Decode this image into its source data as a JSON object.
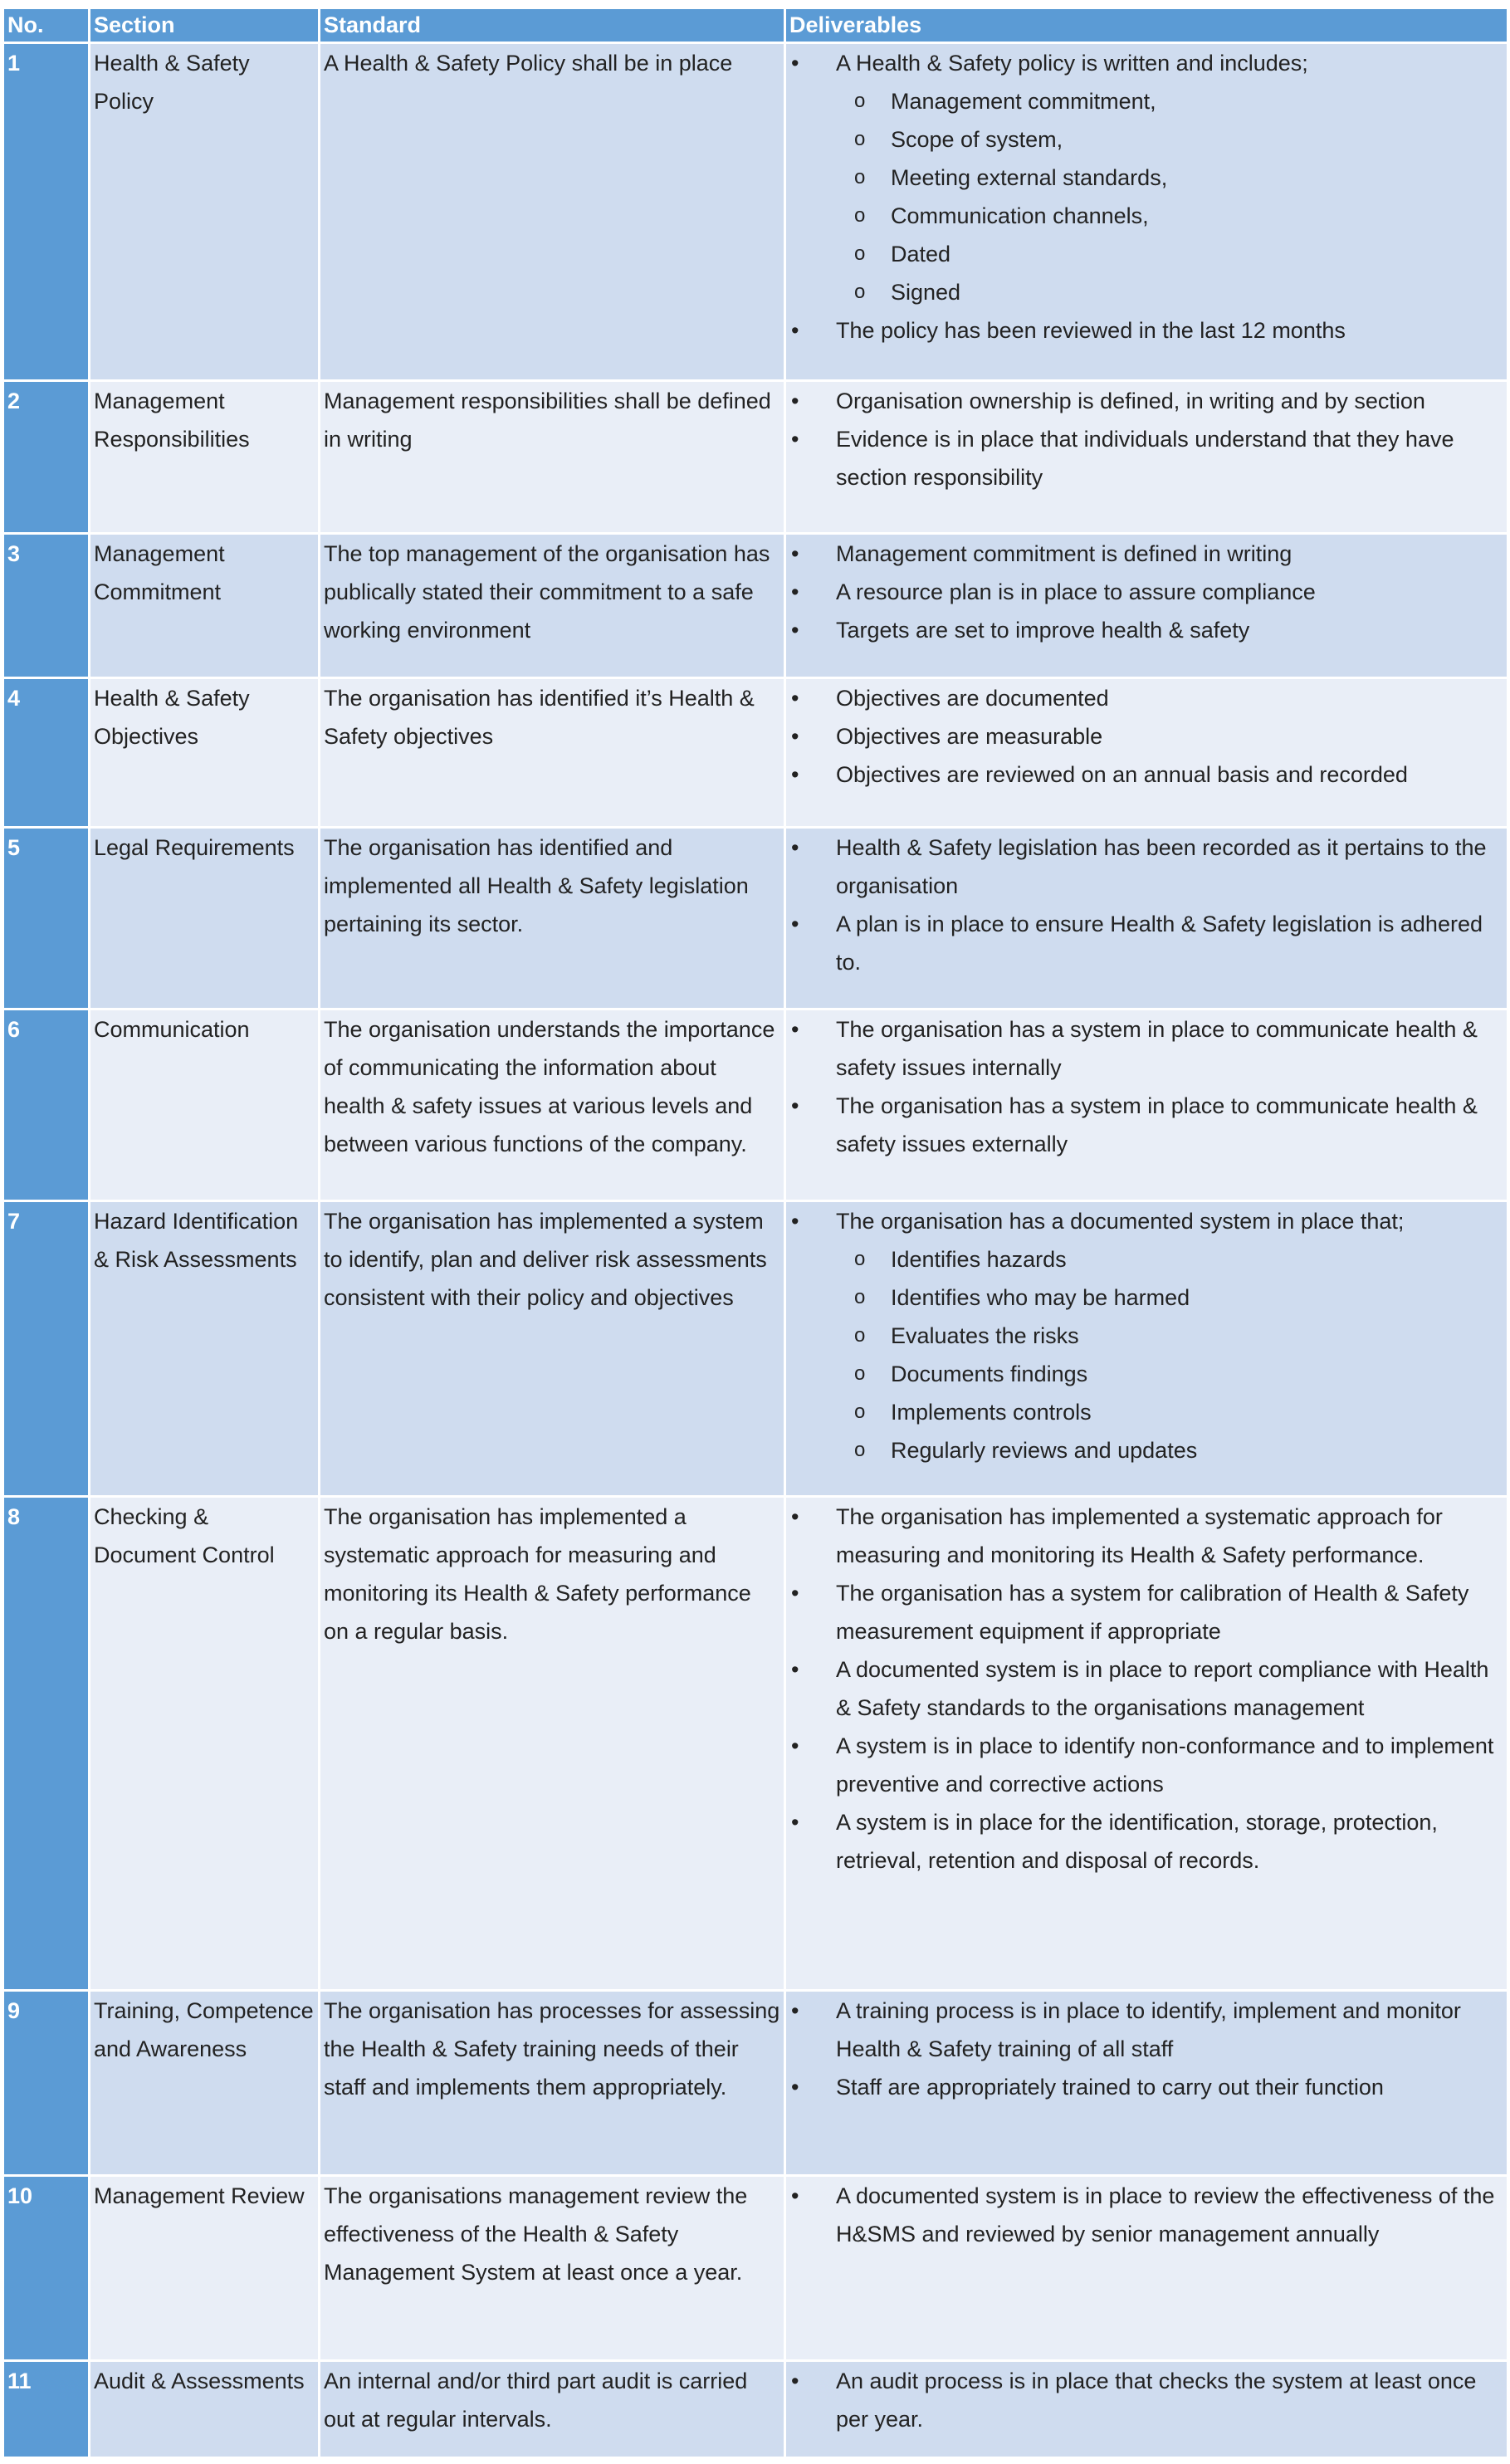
{
  "table": {
    "header": [
      "No.",
      "Section",
      "Standard",
      "Deliverables"
    ],
    "rows": [
      {
        "no": "1",
        "section": "Health & Safety Policy",
        "standard": "A Health & Safety Policy shall be in place",
        "deliverables": [
          {
            "text": "A Health & Safety policy is written and includes;",
            "sub": [
              "Management commitment,",
              "Scope of system,",
              "Meeting external  standards,",
              "Communication channels,",
              "Dated",
              "Signed"
            ]
          },
          {
            "text": "The policy has been reviewed in the last 12 months"
          }
        ]
      },
      {
        "no": "2",
        "section": "Management Responsibilities",
        "standard": "Management responsibilities shall be defined in writing",
        "deliverables": [
          {
            "text": "Organisation ownership is defined, in writing and by section"
          },
          {
            "text": "Evidence is in place that individuals understand that they have section responsibility"
          }
        ]
      },
      {
        "no": "3",
        "section": "Management Commitment",
        "standard": "The top management of the organisation has publically stated their commitment to a safe working environment",
        "deliverables": [
          {
            "text": "Management commitment is defined in writing"
          },
          {
            "text": "A resource plan is in place to assure compliance"
          },
          {
            "text": "Targets are set to improve health & safety"
          }
        ]
      },
      {
        "no": "4",
        "section": "Health & Safety Objectives",
        "standard": "The organisation has identified it’s Health & Safety objectives",
        "deliverables": [
          {
            "text": "Objectives are documented"
          },
          {
            "text": "Objectives are measurable"
          },
          {
            "text": "Objectives are reviewed on an annual basis and recorded"
          }
        ]
      },
      {
        "no": "5",
        "section": "Legal Requirements",
        "standard": "The organisation has identified and implemented all Health & Safety legislation pertaining its sector.",
        "deliverables": [
          {
            "text": "Health & Safety legislation has been recorded as it pertains to the organisation"
          },
          {
            "text": "A plan is in place to ensure Health & Safety legislation is adhered to."
          }
        ]
      },
      {
        "no": "6",
        "section": "Communication",
        "standard": "The organisation understands the importance of communicating the information about health & safety issues at various levels and between various functions of the company.",
        "deliverables": [
          {
            "text": "The organisation has a system in place to communicate health & safety issues internally"
          },
          {
            "text": "The organisation has a system in place to communicate health & safety issues externally"
          }
        ]
      },
      {
        "no": "7",
        "section": "Hazard Identification & Risk Assessments",
        "standard": "The organisation has implemented a system to identify, plan and deliver risk assessments consistent with their policy and objectives",
        "deliverables": [
          {
            "text": "The organisation has a documented system in place that;",
            "sub": [
              "Identifies hazards",
              "Identifies who may be harmed",
              "Evaluates the risks",
              "Documents findings",
              "Implements controls",
              "Regularly reviews and updates"
            ]
          }
        ]
      },
      {
        "no": "8",
        "section": "Checking & Document Control",
        "standard": "The organisation has implemented a systematic approach for measuring and monitoring its Health & Safety performance on a regular basis.",
        "deliverables": [
          {
            "text": "The organisation has implemented a systematic approach for measuring and monitoring its Health & Safety performance."
          },
          {
            "text": "The organisation has a system for calibration of Health & Safety measurement equipment if appropriate"
          },
          {
            "text": "A documented system is in place to report compliance with Health & Safety standards to the organisations management"
          },
          {
            "text": "A system is in place to identify non-conformance and to implement preventive and corrective actions"
          },
          {
            "text": "A system is in place for the identification, storage, protection, retrieval, retention and disposal of records."
          }
        ]
      },
      {
        "no": "9",
        "section": "Training, Competence and Awareness",
        "standard": "The organisation has processes for assessing the Health & Safety  training needs of their staff and implements them appropriately.",
        "deliverables": [
          {
            "text": "A training process is in place to identify, implement and monitor Health & Safety training of all staff"
          },
          {
            "text": "Staff are appropriately trained to carry out their function"
          }
        ]
      },
      {
        "no": "10",
        "section": "Management Review",
        "standard": "The organisations management review the effectiveness of the Health & Safety Management System at least once a year.",
        "deliverables": [
          {
            "text": "A documented system is in place to review the effectiveness of the H&SMS and reviewed by senior management annually"
          }
        ]
      },
      {
        "no": "11",
        "section": "Audit & Assessments",
        "standard": "An internal and/or third part audit is carried out at regular intervals.",
        "deliverables": [
          {
            "text": "An audit process is in place that checks the system at least once per year."
          }
        ]
      }
    ]
  }
}
